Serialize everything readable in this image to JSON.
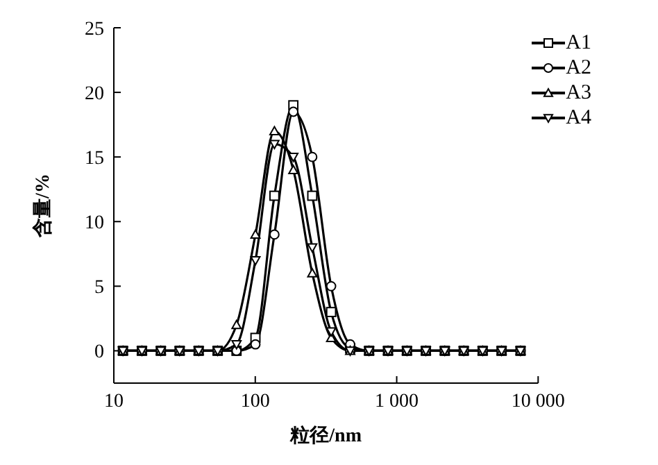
{
  "chart_data": {
    "type": "line",
    "xlabel": "粒径/nm",
    "ylabel": "含量/%",
    "log": "x",
    "xlim": [
      10,
      10000
    ],
    "xticks": [
      10,
      100,
      {
        "value": 1000,
        "label": "1 000"
      },
      {
        "value": 10000,
        "label": "10 000"
      }
    ],
    "ylim": [
      -2.5,
      25
    ],
    "yticks": [
      0,
      5,
      10,
      15,
      20,
      25
    ],
    "legend": "top right",
    "grid": false,
    "x": [
      11.6,
      15.8,
      21.5,
      29.2,
      39.8,
      54.2,
      73.7,
      100.3,
      136.6,
      185.9,
      253,
      344,
      469,
      638,
      868,
      1181,
      1608,
      2188,
      2978,
      4053,
      5516,
      7508
    ],
    "series": [
      {
        "name": "A1",
        "color": "#000000",
        "marker": "square",
        "values": [
          0,
          0,
          0,
          0,
          0,
          0,
          0,
          1,
          12,
          19,
          12,
          3,
          0.2,
          0,
          0,
          0,
          0,
          0,
          0,
          0,
          0,
          0
        ]
      },
      {
        "name": "A2",
        "color": "#000000",
        "marker": "circle",
        "values": [
          0,
          0,
          0,
          0,
          0,
          0,
          0,
          0.5,
          9,
          18.5,
          15,
          5,
          0.5,
          0,
          0,
          0,
          0,
          0,
          0,
          0,
          0,
          0
        ]
      },
      {
        "name": "A3",
        "color": "#000000",
        "marker": "triangle",
        "values": [
          0,
          0,
          0,
          0,
          0,
          0,
          2,
          9,
          17,
          14,
          6,
          1,
          0,
          0,
          0,
          0,
          0,
          0,
          0,
          0,
          0,
          0
        ]
      },
      {
        "name": "A4",
        "color": "#000000",
        "marker": "triangle-down",
        "values": [
          0,
          0,
          0,
          0,
          0,
          0,
          0.5,
          7,
          16,
          15,
          8,
          1.5,
          0,
          0,
          0,
          0,
          0,
          0,
          0,
          0,
          0,
          0
        ]
      }
    ]
  }
}
